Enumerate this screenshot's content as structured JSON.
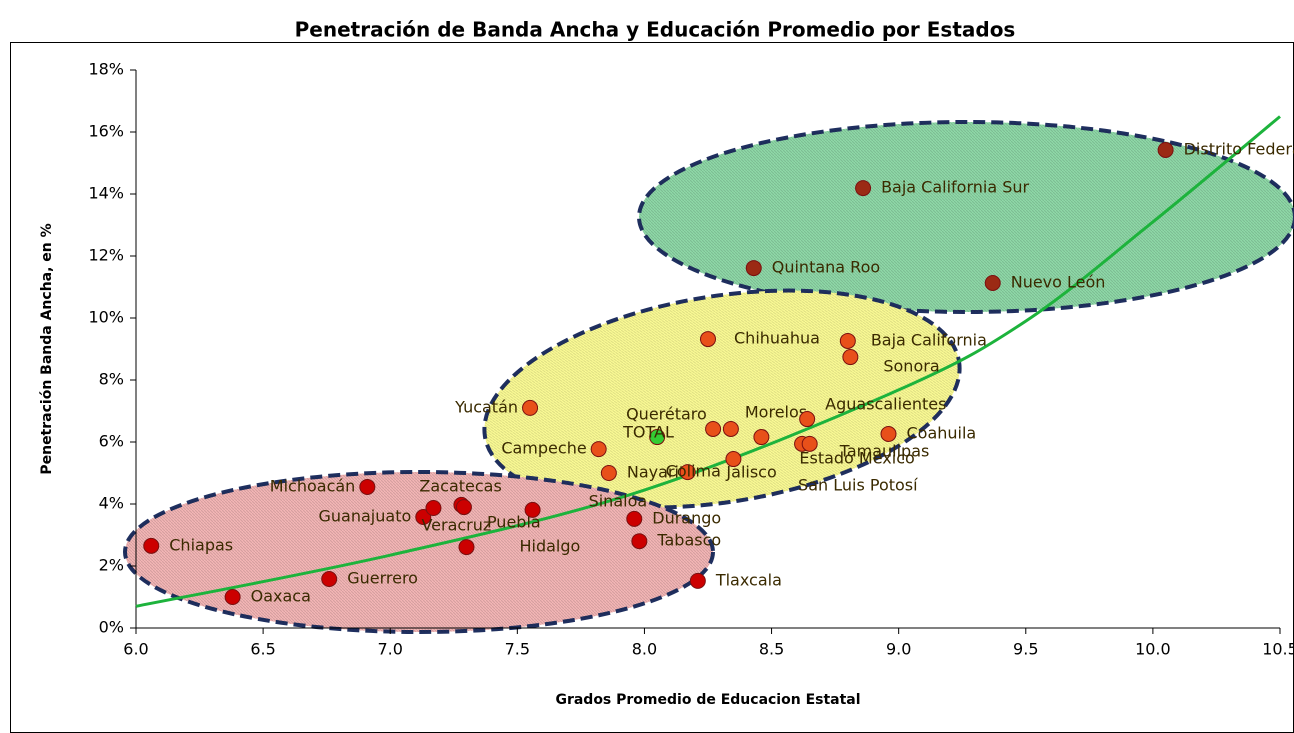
{
  "chart_data": {
    "type": "scatter",
    "title": "Penetración de Banda Ancha y Educación Promedio por Estados",
    "x_label": "Grados Promedio de Educacion Estatal",
    "y_label": "Penetración Banda Ancha, en %",
    "xlim": [
      6.0,
      10.5
    ],
    "xticks": [
      {
        "value": 6,
        "label": "6.0"
      },
      6.5,
      {
        "value": 7,
        "label": "7.0"
      },
      7.5,
      {
        "value": 8,
        "label": "8.0"
      },
      8.5,
      {
        "value": 9,
        "label": "9.0"
      },
      9.5,
      {
        "value": 10,
        "label": "10.0"
      },
      10.5
    ],
    "ylim": [
      0,
      18
    ],
    "yticks": [
      {
        "value": 0,
        "label": "0%"
      },
      {
        "value": 2,
        "label": "2%"
      },
      {
        "value": 4,
        "label": "4%"
      },
      {
        "value": 6,
        "label": "6%"
      },
      {
        "value": 8,
        "label": "8%"
      },
      {
        "value": 10,
        "label": "10%"
      },
      {
        "value": 12,
        "label": "12%"
      },
      {
        "value": 14,
        "label": "14%"
      },
      {
        "value": 16,
        "label": "16%"
      },
      {
        "value": 18,
        "label": "18%"
      }
    ],
    "labels": [
      "Chiapas",
      "Oaxaca",
      "Guerrero",
      "Michoacán",
      "Guanajuato",
      "Veracruz",
      "Zacatecas",
      "Puebla",
      "Sinaloa",
      "Hidalgo",
      "Durango",
      "Tabasco",
      "Tlaxcala",
      "Nayarit",
      "Campeche",
      "Yucatán",
      "TOTAL",
      "Querétaro",
      "Morelos",
      "Colima",
      "Jalisco",
      "Estado México",
      "San Luis Potosí",
      "Tamaulipas",
      "Aguascalientes",
      "Coahuila",
      "Chihuahua",
      "Baja California",
      "Sonora",
      "Quintana Roo",
      "Baja California Sur",
      "Nuevo León",
      "Distrito Federal"
    ],
    "x": [
      6.06,
      6.38,
      6.76,
      6.91,
      7.13,
      7.17,
      7.28,
      7.29,
      7.56,
      7.3,
      7.96,
      7.98,
      8.21,
      7.86,
      7.82,
      7.55,
      8.05,
      8.27,
      8.34,
      8.17,
      8.35,
      8.46,
      8.62,
      8.65,
      8.64,
      8.96,
      8.25,
      8.8,
      8.81,
      8.43,
      8.86,
      9.37,
      10.05
    ],
    "y": [
      2.65,
      1.0,
      1.58,
      4.55,
      3.58,
      3.87,
      3.97,
      3.9,
      3.81,
      2.61,
      3.52,
      2.8,
      1.52,
      5.0,
      5.77,
      7.1,
      6.16,
      6.42,
      6.42,
      5.03,
      5.45,
      6.16,
      5.94,
      5.94,
      6.74,
      6.26,
      9.32,
      9.26,
      8.74,
      11.61,
      14.19,
      11.13,
      15.42
    ],
    "colors": [
      "#cc0000",
      "#cc0000",
      "#cc0000",
      "#cc0000",
      "#cc0000",
      "#cc0000",
      "#cc0000",
      "#cc0000",
      "#cc0000",
      "#cc0000",
      "#cc0000",
      "#cc0000",
      "#cc0000",
      "#e8501a",
      "#e8501a",
      "#e8501a",
      "#33cc33",
      "#e8501a",
      "#e8501a",
      "#e8501a",
      "#e8501a",
      "#e8501a",
      "#e8501a",
      "#e8501a",
      "#e8501a",
      "#e8501a",
      "#e8501a",
      "#e8501a",
      "#e8501a",
      "#9b2a14",
      "#9b2a14",
      "#9b2a14",
      "#9b2a14"
    ],
    "trendline": {
      "type": "exponential",
      "color": "#1db33c",
      "x": [
        6.0,
        7.0,
        8.0,
        9.0,
        9.5,
        10.0,
        10.5
      ],
      "y": [
        0.7,
        2.35,
        4.45,
        7.68,
        9.9,
        13.1,
        16.5
      ]
    }
  }
}
